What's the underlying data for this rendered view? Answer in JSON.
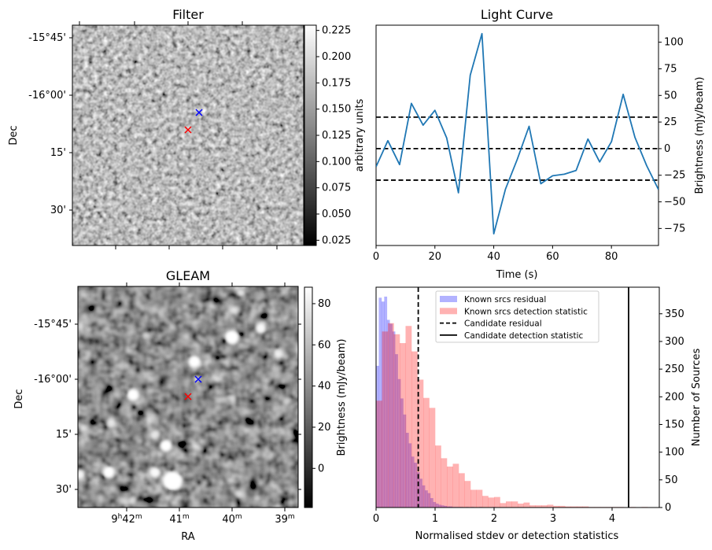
{
  "panels": {
    "filter": {
      "title": "Filter",
      "ylabel": "Dec",
      "dec_ticks": [
        "-15°45'",
        "-16°00'",
        "15'",
        "30'"
      ],
      "colorbar": {
        "label": "arbitrary units",
        "range": [
          0.02,
          0.23
        ],
        "ticks": [
          "0.225",
          "0.200",
          "0.175",
          "0.150",
          "0.125",
          "0.100",
          "0.075",
          "0.050",
          "0.025"
        ],
        "tick_values": [
          0.225,
          0.2,
          0.175,
          0.15,
          0.125,
          0.1,
          0.075,
          0.05,
          0.025
        ]
      },
      "markers": [
        {
          "name": "candidate-marker",
          "color": "#0000ff",
          "symbol": "x"
        },
        {
          "name": "reference-marker",
          "color": "#ff0000",
          "symbol": "x"
        }
      ]
    },
    "gleam": {
      "title": "GLEAM",
      "ylabel": "Dec",
      "xlabel": "RA",
      "dec_ticks": [
        "-15°45'",
        "-16°00'",
        "15'",
        "30'"
      ],
      "ra_ticks": [
        {
          "main": "9",
          "sup1": "h",
          "mid": "42",
          "sup2": "m"
        },
        {
          "main": "",
          "sup1": "",
          "mid": "41",
          "sup2": "m"
        },
        {
          "main": "",
          "sup1": "",
          "mid": "40",
          "sup2": "m"
        },
        {
          "main": "",
          "sup1": "",
          "mid": "39",
          "sup2": "m"
        }
      ],
      "colorbar": {
        "label": "Brightness (mJy/beam)",
        "range": [
          -19,
          88
        ],
        "ticks": [
          "80",
          "60",
          "40",
          "20",
          "0"
        ],
        "tick_values": [
          80,
          60,
          40,
          20,
          0
        ]
      },
      "markers": [
        {
          "name": "candidate-marker",
          "color": "#0000ff",
          "symbol": "x"
        },
        {
          "name": "reference-marker",
          "color": "#ff0000",
          "symbol": "x"
        }
      ]
    }
  },
  "chart_data": [
    {
      "type": "line",
      "title": "Light Curve",
      "xlabel": "Time (s)",
      "ylabel_left": "arbitrary units",
      "ylabel_right": "Brightness (mJy/beam)",
      "xlim": [
        0,
        96
      ],
      "ylim": [
        -91,
        116
      ],
      "xticks": [
        0,
        20,
        40,
        60,
        80
      ],
      "yticks": [
        100,
        75,
        50,
        25,
        0,
        -25,
        -50,
        -75
      ],
      "ytick_labels": [
        "100",
        "75",
        "50",
        "25",
        "0",
        "−25",
        "−50",
        "−75"
      ],
      "grid": false,
      "series": [
        {
          "name": "light curve",
          "color": "#1f77b4",
          "x": [
            0,
            4,
            8,
            12,
            16,
            20,
            24,
            28,
            32,
            36,
            40,
            44,
            48,
            52,
            56,
            60,
            64,
            68,
            72,
            76,
            80,
            84,
            88,
            92,
            96
          ],
          "y": [
            -17,
            7.5,
            -15,
            42.5,
            22,
            36,
            10,
            -41.5,
            69,
            108,
            -80,
            -38,
            -10,
            21,
            -33,
            -25.5,
            -24,
            -20.5,
            9,
            -12.5,
            6.5,
            51,
            10.5,
            -16,
            -38.5
          ]
        }
      ],
      "hlines": [
        {
          "y": 29.6,
          "style": "dashed",
          "color": "#000000"
        },
        {
          "y": 0,
          "style": "dashed",
          "color": "#000000"
        },
        {
          "y": -29.6,
          "style": "dashed",
          "color": "#000000"
        }
      ]
    },
    {
      "type": "histogram",
      "xlabel": "Normalised stdev or detection statistics",
      "ylabel": "Number of Sources",
      "xlim": [
        0,
        4.8
      ],
      "ylim": [
        0,
        398
      ],
      "xticks": [
        0,
        1,
        2,
        3,
        4
      ],
      "yticks": [
        0,
        50,
        100,
        150,
        200,
        250,
        300,
        350
      ],
      "legend": {
        "placement": "upper-center",
        "entries": [
          {
            "label": "Known srcs residual",
            "kind": "patch",
            "color": "#0000ff",
            "alpha": 0.3
          },
          {
            "label": "Known srcs detection statistic",
            "kind": "patch",
            "color": "#ff0000",
            "alpha": 0.3
          },
          {
            "label": "Candidate residual",
            "kind": "dashed-line",
            "color": "#000000"
          },
          {
            "label": "Candidate detection statistic",
            "kind": "solid-line",
            "color": "#000000"
          }
        ]
      },
      "series": [
        {
          "name": "Known srcs residual",
          "color": "#0000ff",
          "alpha": 0.3,
          "bin_start": 0,
          "bin_width": 0.046,
          "counts": [
            256,
            379,
            372,
            381,
            339,
            332,
            318,
            277,
            232,
            197,
            168,
            135,
            116,
            92,
            81,
            64,
            52,
            40,
            31,
            26,
            17,
            10,
            7,
            5,
            4,
            3,
            2,
            2,
            1,
            1,
            1,
            1,
            0,
            1,
            0,
            1,
            0,
            0,
            1,
            0,
            0,
            0,
            0,
            1
          ]
        },
        {
          "name": "Known srcs detection statistic",
          "color": "#ff0000",
          "alpha": 0.3,
          "bin_start": 0,
          "bin_width": 0.1,
          "counts": [
            193,
            318,
            333,
            313,
            297,
            328,
            282,
            231,
            198,
            180,
            112,
            89,
            74,
            79,
            62,
            48,
            32,
            32,
            21,
            18,
            19,
            8,
            11,
            11,
            7,
            9,
            4,
            4,
            4,
            5,
            3,
            3,
            2,
            2,
            2,
            2,
            1,
            1,
            1,
            1,
            1,
            1,
            0,
            1,
            0,
            1
          ]
        }
      ],
      "vlines": [
        {
          "name": "Candidate residual",
          "x": 0.715,
          "style": "dashed",
          "color": "#000000"
        },
        {
          "name": "Candidate detection statistic",
          "x": 4.28,
          "style": "solid",
          "color": "#000000"
        }
      ]
    }
  ]
}
